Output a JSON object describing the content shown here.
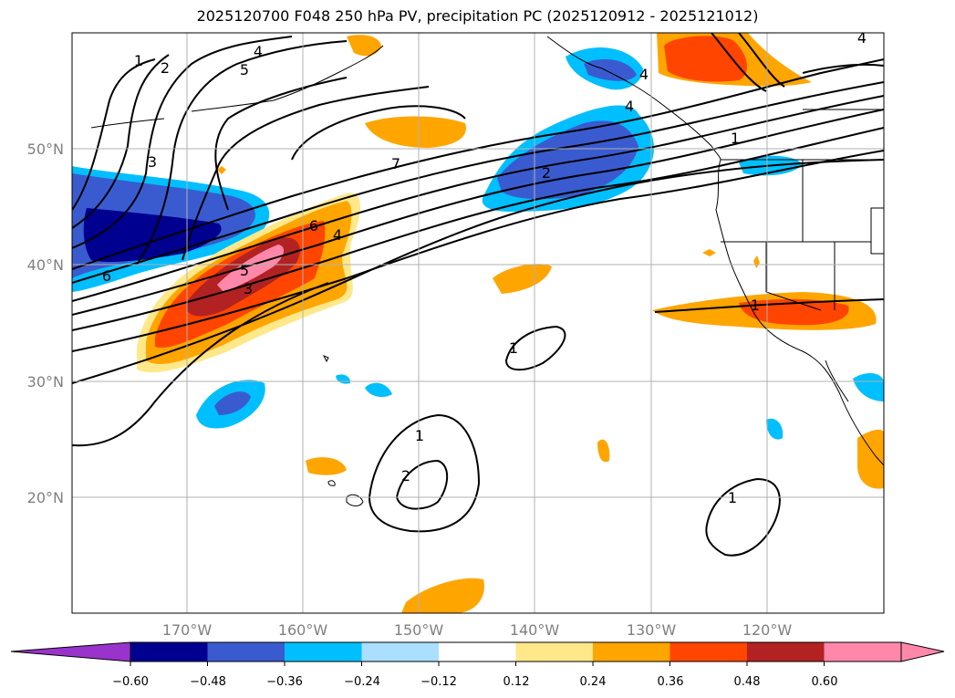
{
  "title": "2025120700 F048 250 hPa PV, precipitation PC (2025120912 - 2025121012)",
  "map": {
    "lat_labels": [
      "50°N",
      "40°N",
      "30°N",
      "20°N"
    ],
    "lon_labels": [
      "170°W",
      "160°W",
      "150°W",
      "140°W",
      "130°W",
      "120°W"
    ],
    "contour_labels": [
      "1",
      "2",
      "5",
      "4",
      "3",
      "6",
      "6",
      "4",
      "5",
      "3",
      "7",
      "2",
      "1",
      "1",
      "1",
      "2",
      "1",
      "4",
      "4",
      "4",
      "1"
    ]
  },
  "colorbar": {
    "ticks": [
      "−0.60",
      "−0.48",
      "−0.36",
      "−0.24",
      "−0.12",
      "0.12",
      "0.24",
      "0.36",
      "0.48",
      "0.60"
    ],
    "colors": [
      "#9933cc",
      "#000090",
      "#3a5bd0",
      "#00bfff",
      "#aadfff",
      "#ffffff",
      "#ffe88a",
      "#ffa500",
      "#ff4500",
      "#b22222",
      "#ff88aa",
      "#ff88aa"
    ]
  }
}
